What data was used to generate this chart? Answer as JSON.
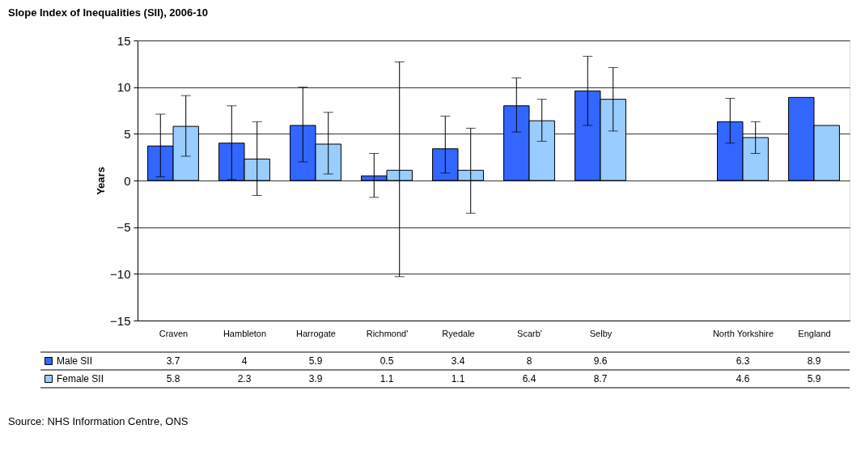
{
  "chart_data": {
    "type": "bar",
    "title": "Slope Index of Inequalities (SII), 2006-10",
    "ylabel": "Years",
    "categories": [
      "Craven",
      "Hambleton",
      "Harrogate",
      "Richmond'",
      "Ryedale",
      "Scarb'",
      "Selby",
      null,
      "North Yorkshire",
      "England"
    ],
    "series": [
      {
        "name": "Male SII",
        "color": "#3366ff",
        "values": [
          3.7,
          4,
          5.9,
          0.5,
          3.4,
          8,
          9.6,
          null,
          6.3,
          8.9
        ],
        "errors": [
          [
            0.4,
            7.1
          ],
          [
            0.1,
            8.0
          ],
          [
            2.0,
            10.0
          ],
          [
            -1.8,
            2.9
          ],
          [
            0.8,
            6.9
          ],
          [
            5.2,
            11.0
          ],
          [
            5.9,
            13.3
          ],
          null,
          [
            4.0,
            8.8
          ],
          null
        ]
      },
      {
        "name": "Female SII",
        "color": "#99ccff",
        "values": [
          5.8,
          2.3,
          3.9,
          1.1,
          1.1,
          6.4,
          8.7,
          null,
          4.6,
          5.9
        ],
        "errors": [
          [
            2.6,
            9.1
          ],
          [
            -1.6,
            6.3
          ],
          [
            0.7,
            7.3
          ],
          [
            -10.3,
            12.7
          ],
          [
            -3.5,
            5.6
          ],
          [
            4.2,
            8.7
          ],
          [
            5.3,
            12.1
          ],
          null,
          [
            2.9,
            6.3
          ],
          null
        ]
      }
    ],
    "ylim": [
      -15,
      15
    ],
    "yticks": [
      -15,
      -10,
      -5,
      0,
      5,
      10,
      15
    ],
    "grid": "y",
    "data_labels": true,
    "legend": "bottom left",
    "annotations": [
      "Source: NHS Information Centre, ONS"
    ]
  }
}
